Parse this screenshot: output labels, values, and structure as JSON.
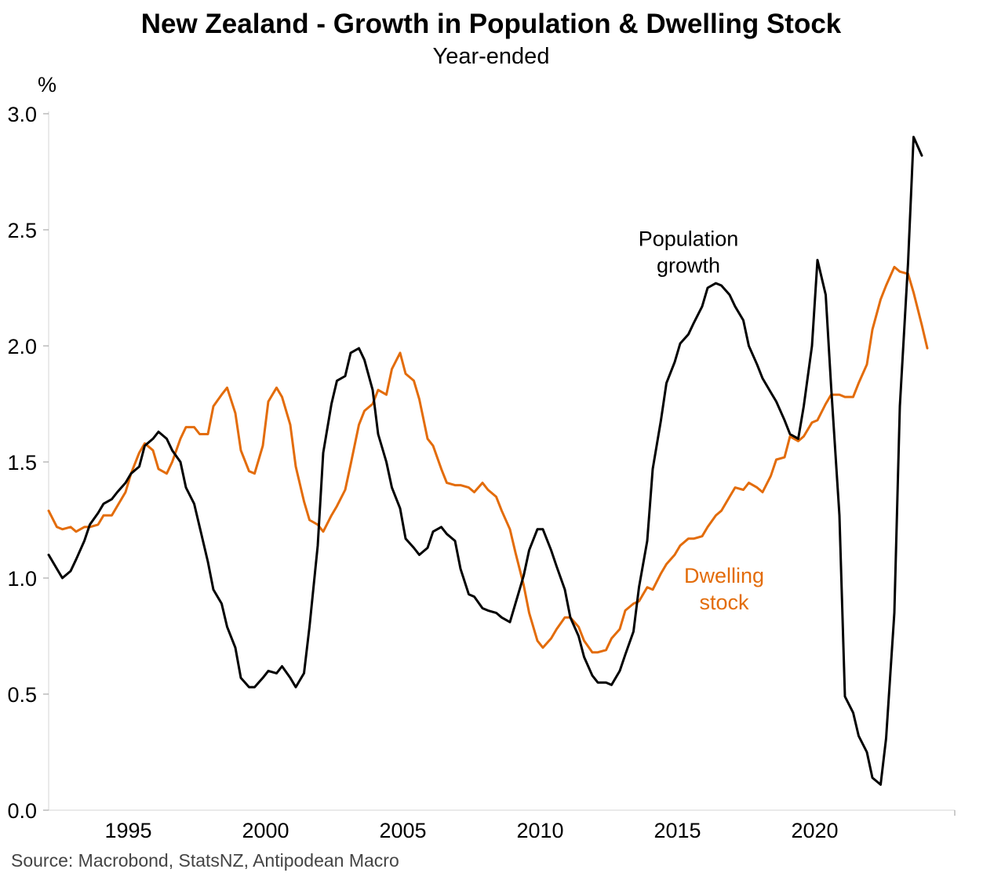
{
  "chart_data": {
    "type": "line",
    "title": "New Zealand - Growth in Population & Dwelling Stock",
    "subtitle": "Year-ended",
    "ylabel": "%",
    "xlabel": "",
    "ylim": [
      0,
      3
    ],
    "xlim": [
      1992.1,
      2025.1
    ],
    "yticks": [
      "0.0",
      "0.5",
      "1.0",
      "1.5",
      "2.0",
      "2.5",
      "3.0"
    ],
    "xticks": [
      "1995",
      "2000",
      "2005",
      "2010",
      "2015",
      "2020"
    ],
    "grid": false,
    "legend": "none",
    "source": "Source: Macrobond, StatsNZ, Antipodean Macro",
    "annotations": [
      {
        "lines": [
          "Population",
          "growth"
        ],
        "color": "#000000",
        "x": 2015.4,
        "y": 2.43
      },
      {
        "lines": [
          "Dwelling",
          "stock"
        ],
        "color": "#e36c0a",
        "x": 2016.7,
        "y": 0.98
      }
    ],
    "series": [
      {
        "name": "Population growth",
        "color": "#000000",
        "x": [
          1992.1,
          1992.4,
          1992.6,
          1992.9,
          1993.1,
          1993.4,
          1993.6,
          1993.9,
          1994.1,
          1994.4,
          1994.6,
          1994.9,
          1995.1,
          1995.4,
          1995.6,
          1995.9,
          1996.1,
          1996.4,
          1996.6,
          1996.9,
          1997.1,
          1997.4,
          1997.6,
          1997.9,
          1998.1,
          1998.4,
          1998.6,
          1998.9,
          1999.1,
          1999.4,
          1999.6,
          1999.9,
          2000.1,
          2000.4,
          2000.6,
          2000.9,
          2001.1,
          2001.4,
          2001.6,
          2001.9,
          2002.1,
          2002.4,
          2002.6,
          2002.9,
          2003.1,
          2003.4,
          2003.6,
          2003.9,
          2004.1,
          2004.4,
          2004.6,
          2004.9,
          2005.1,
          2005.4,
          2005.6,
          2005.9,
          2006.1,
          2006.4,
          2006.6,
          2006.9,
          2007.1,
          2007.4,
          2007.6,
          2007.9,
          2008.1,
          2008.4,
          2008.6,
          2008.9,
          2009.1,
          2009.4,
          2009.6,
          2009.9,
          2010.1,
          2010.4,
          2010.6,
          2010.9,
          2011.1,
          2011.4,
          2011.6,
          2011.9,
          2012.1,
          2012.4,
          2012.6,
          2012.9,
          2013.1,
          2013.4,
          2013.6,
          2013.9,
          2014.1,
          2014.4,
          2014.6,
          2014.9,
          2015.1,
          2015.4,
          2015.6,
          2015.9,
          2016.1,
          2016.4,
          2016.6,
          2016.9,
          2017.1,
          2017.4,
          2017.6,
          2017.9,
          2018.1,
          2018.4,
          2018.6,
          2018.9,
          2019.1,
          2019.4,
          2019.6,
          2019.9,
          2020.1,
          2020.4,
          2020.6,
          2020.9,
          2021.1,
          2021.4,
          2021.6,
          2021.9,
          2022.1,
          2022.4,
          2022.6,
          2022.9,
          2023.1,
          2023.4,
          2023.6,
          2023.9
        ],
        "values": [
          1.1,
          1.04,
          1.0,
          1.03,
          1.08,
          1.16,
          1.23,
          1.28,
          1.32,
          1.34,
          1.37,
          1.41,
          1.45,
          1.48,
          1.57,
          1.6,
          1.63,
          1.6,
          1.55,
          1.5,
          1.39,
          1.32,
          1.22,
          1.07,
          0.95,
          0.89,
          0.79,
          0.7,
          0.57,
          0.53,
          0.53,
          0.57,
          0.6,
          0.59,
          0.62,
          0.57,
          0.53,
          0.59,
          0.79,
          1.14,
          1.54,
          1.75,
          1.85,
          1.87,
          1.97,
          1.99,
          1.94,
          1.81,
          1.62,
          1.5,
          1.39,
          1.3,
          1.17,
          1.13,
          1.1,
          1.13,
          1.2,
          1.22,
          1.19,
          1.16,
          1.04,
          0.93,
          0.92,
          0.87,
          0.86,
          0.85,
          0.83,
          0.81,
          0.89,
          1.01,
          1.12,
          1.21,
          1.21,
          1.12,
          1.05,
          0.95,
          0.83,
          0.75,
          0.66,
          0.58,
          0.55,
          0.55,
          0.54,
          0.6,
          0.67,
          0.77,
          0.96,
          1.16,
          1.47,
          1.68,
          1.84,
          1.93,
          2.01,
          2.05,
          2.1,
          2.17,
          2.25,
          2.27,
          2.26,
          2.22,
          2.17,
          2.11,
          2.0,
          1.92,
          1.86,
          1.8,
          1.76,
          1.68,
          1.62,
          1.6,
          1.74,
          2.0,
          2.37,
          2.22,
          1.82,
          1.27,
          0.49,
          0.42,
          0.32,
          0.25,
          0.14,
          0.11,
          0.31,
          0.85,
          1.74,
          2.36,
          2.9,
          2.82
        ]
      },
      {
        "name": "Dwelling stock",
        "color": "#e36c0a",
        "x": [
          1992.1,
          1992.4,
          1992.6,
          1992.9,
          1993.1,
          1993.4,
          1993.6,
          1993.9,
          1994.1,
          1994.4,
          1994.6,
          1994.9,
          1995.1,
          1995.4,
          1995.6,
          1995.9,
          1996.1,
          1996.4,
          1996.6,
          1996.9,
          1997.1,
          1997.4,
          1997.6,
          1997.9,
          1998.1,
          1998.4,
          1998.6,
          1998.9,
          1999.1,
          1999.4,
          1999.6,
          1999.9,
          2000.1,
          2000.4,
          2000.6,
          2000.9,
          2001.1,
          2001.4,
          2001.6,
          2001.9,
          2002.1,
          2002.4,
          2002.6,
          2002.9,
          2003.1,
          2003.4,
          2003.6,
          2003.9,
          2004.1,
          2004.4,
          2004.6,
          2004.9,
          2005.1,
          2005.4,
          2005.6,
          2005.9,
          2006.1,
          2006.4,
          2006.6,
          2006.9,
          2007.1,
          2007.4,
          2007.6,
          2007.9,
          2008.1,
          2008.4,
          2008.6,
          2008.9,
          2009.1,
          2009.4,
          2009.6,
          2009.9,
          2010.1,
          2010.4,
          2010.6,
          2010.9,
          2011.1,
          2011.4,
          2011.6,
          2011.9,
          2012.1,
          2012.4,
          2012.6,
          2012.9,
          2013.1,
          2013.4,
          2013.6,
          2013.9,
          2014.1,
          2014.4,
          2014.6,
          2014.9,
          2015.1,
          2015.4,
          2015.6,
          2015.9,
          2016.1,
          2016.4,
          2016.6,
          2016.9,
          2017.1,
          2017.4,
          2017.6,
          2017.9,
          2018.1,
          2018.4,
          2018.6,
          2018.9,
          2019.1,
          2019.4,
          2019.6,
          2019.9,
          2020.1,
          2020.4,
          2020.6,
          2020.9,
          2021.1,
          2021.4,
          2021.6,
          2021.9,
          2022.1,
          2022.4,
          2022.6,
          2022.9,
          2023.1,
          2023.4,
          2023.6,
          2023.9,
          2024.1
        ],
        "values": [
          1.29,
          1.22,
          1.21,
          1.22,
          1.2,
          1.22,
          1.22,
          1.23,
          1.27,
          1.27,
          1.31,
          1.37,
          1.45,
          1.54,
          1.58,
          1.55,
          1.47,
          1.45,
          1.5,
          1.6,
          1.65,
          1.65,
          1.62,
          1.62,
          1.74,
          1.79,
          1.82,
          1.71,
          1.55,
          1.46,
          1.45,
          1.57,
          1.76,
          1.82,
          1.78,
          1.66,
          1.48,
          1.33,
          1.25,
          1.23,
          1.2,
          1.27,
          1.31,
          1.38,
          1.49,
          1.66,
          1.72,
          1.75,
          1.81,
          1.79,
          1.9,
          1.97,
          1.88,
          1.85,
          1.77,
          1.6,
          1.57,
          1.47,
          1.41,
          1.4,
          1.4,
          1.39,
          1.37,
          1.41,
          1.38,
          1.35,
          1.29,
          1.21,
          1.11,
          0.97,
          0.85,
          0.73,
          0.7,
          0.74,
          0.78,
          0.83,
          0.83,
          0.79,
          0.73,
          0.68,
          0.68,
          0.69,
          0.74,
          0.78,
          0.86,
          0.89,
          0.9,
          0.96,
          0.95,
          1.02,
          1.06,
          1.1,
          1.14,
          1.17,
          1.17,
          1.18,
          1.22,
          1.27,
          1.29,
          1.35,
          1.39,
          1.38,
          1.41,
          1.39,
          1.37,
          1.44,
          1.51,
          1.52,
          1.61,
          1.59,
          1.61,
          1.67,
          1.68,
          1.75,
          1.79,
          1.79,
          1.78,
          1.78,
          1.84,
          1.92,
          2.07,
          2.2,
          2.26,
          2.34,
          2.32,
          2.31,
          2.23,
          2.09,
          1.99
        ]
      }
    ]
  }
}
